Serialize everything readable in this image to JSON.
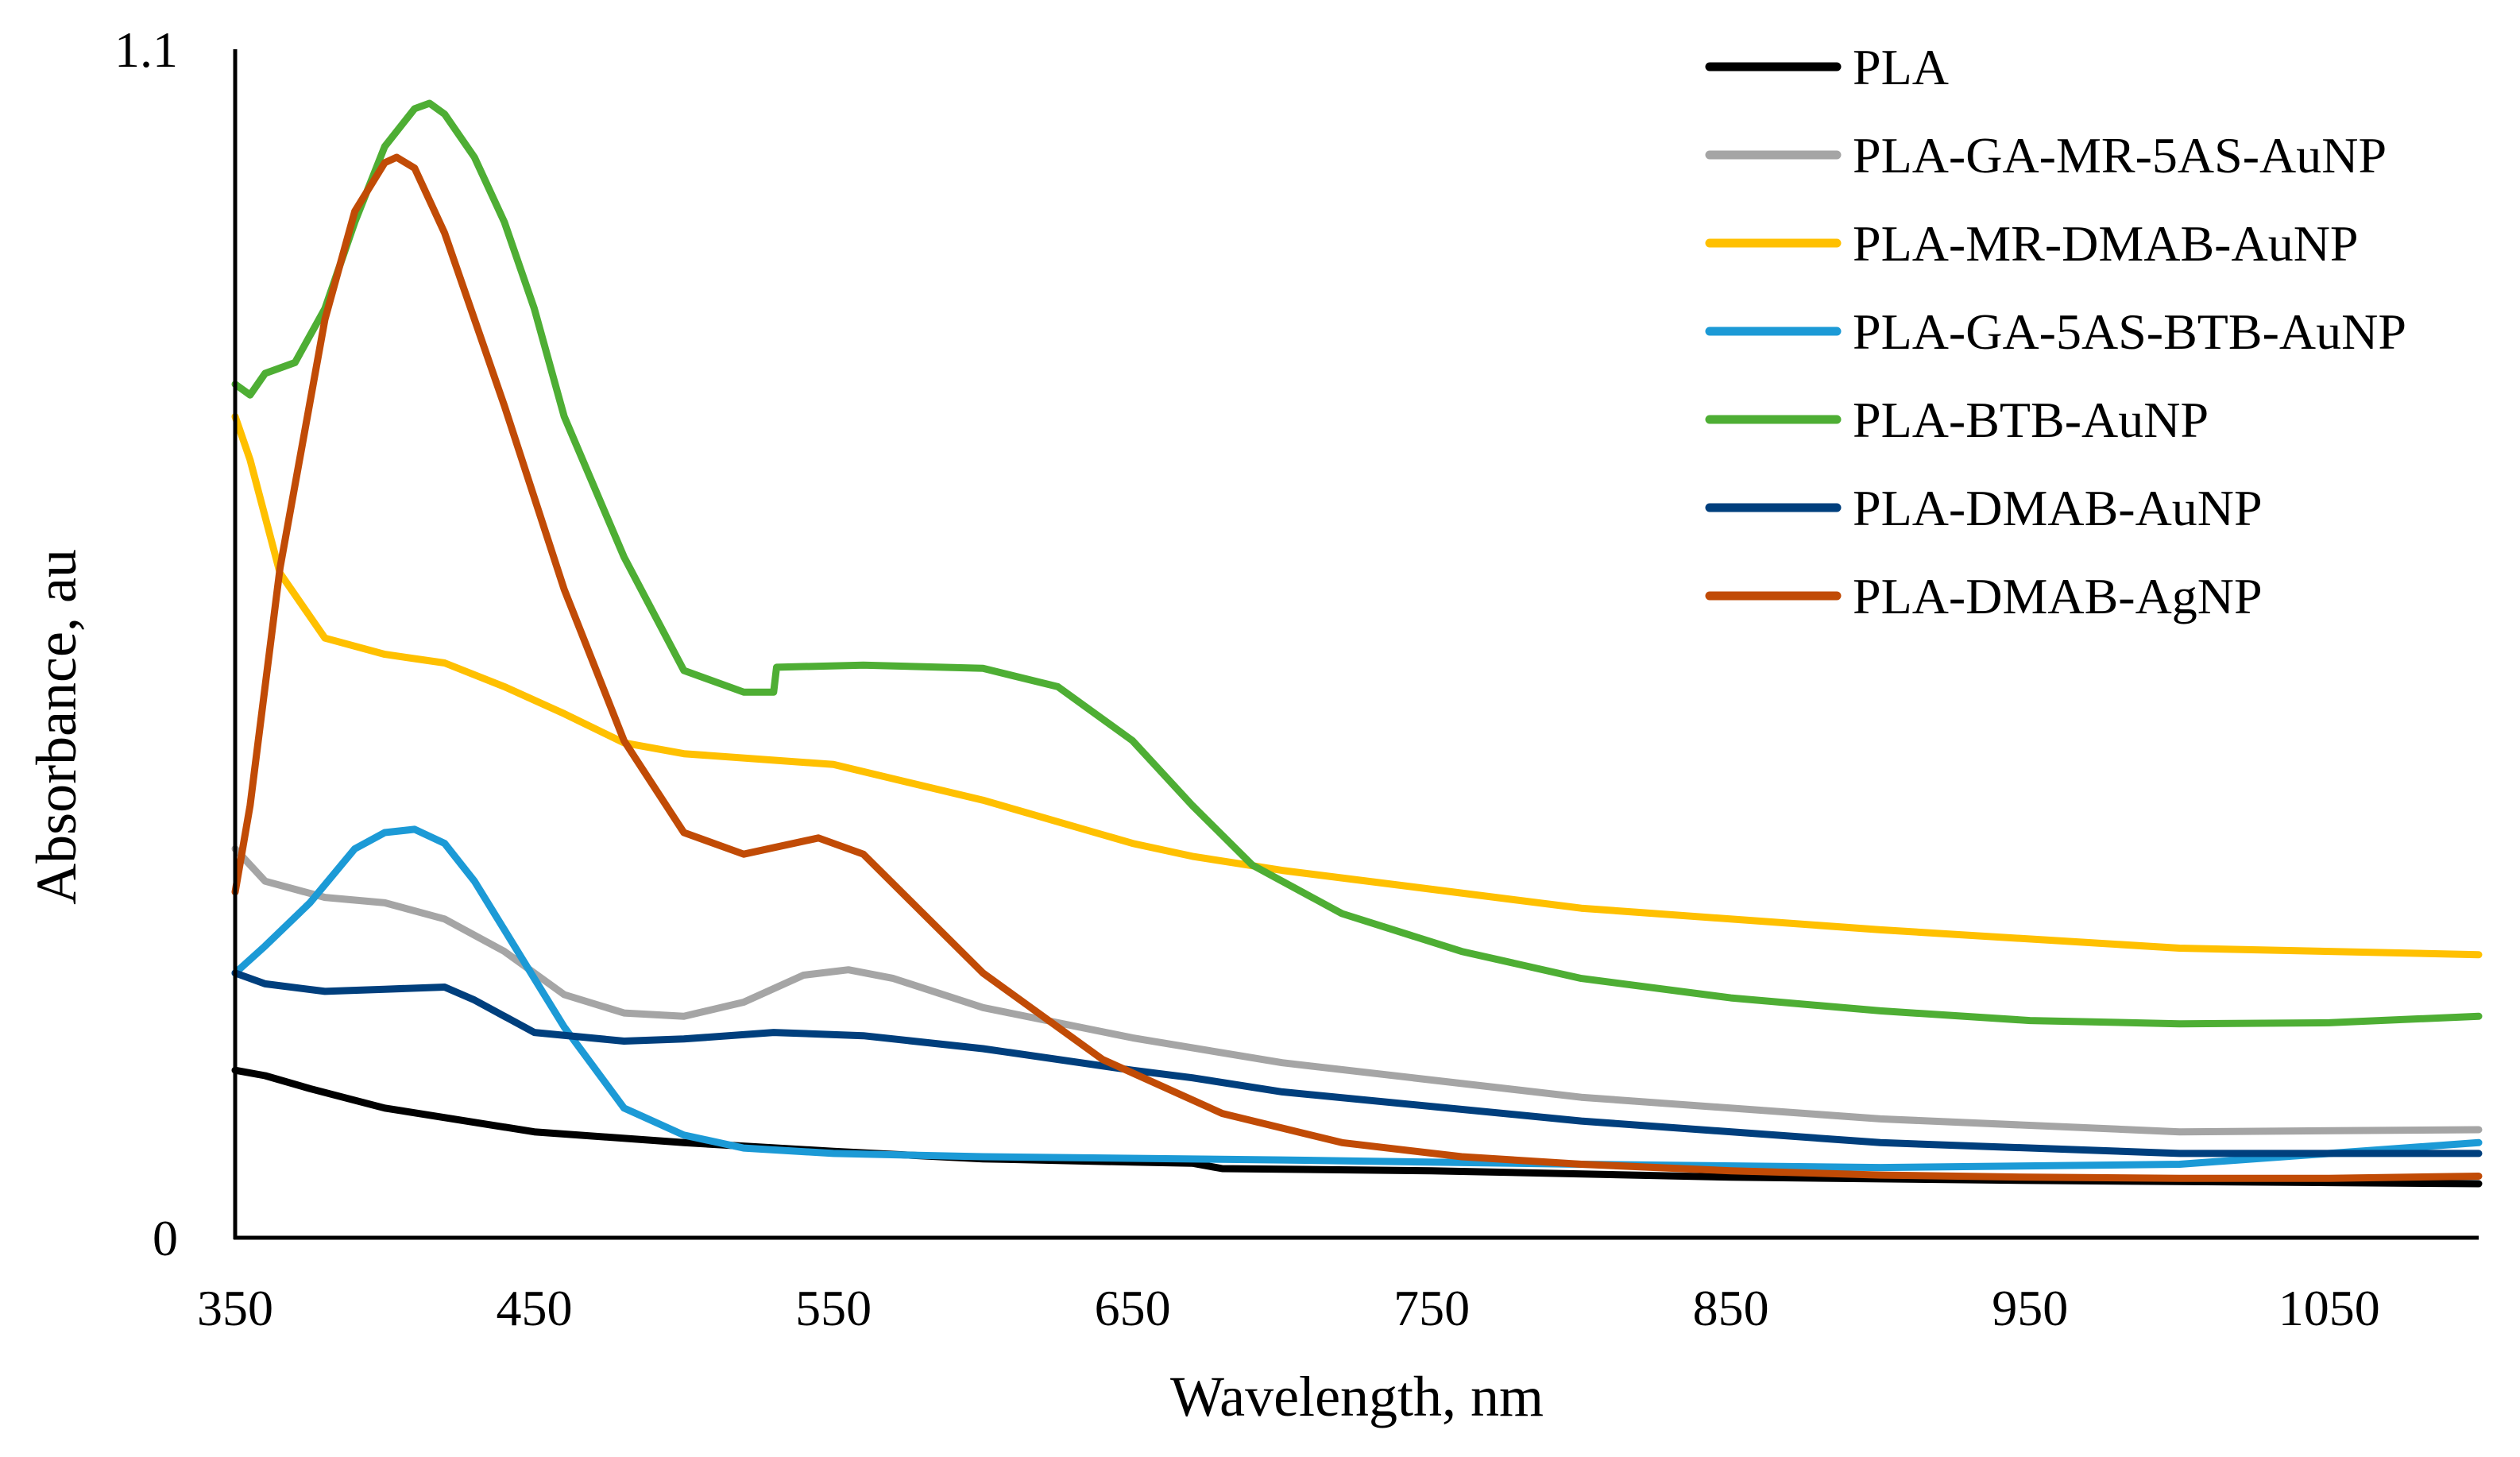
{
  "chart_data": {
    "type": "line",
    "title": "",
    "xlabel": "Wavelength, nm",
    "ylabel": "Absorbance, au",
    "xlim": [
      350,
      1100
    ],
    "ylim": [
      0,
      1.1
    ],
    "x_ticks": [
      350,
      450,
      550,
      650,
      750,
      850,
      950,
      1050
    ],
    "x_tick_labels": [
      "350",
      "450",
      "550",
      "650",
      "750",
      "850",
      "950",
      "1050"
    ],
    "y_ticks": [
      0,
      1.1
    ],
    "y_tick_labels": [
      "0",
      "1.1"
    ],
    "grid": false,
    "legend_position": "top-right",
    "series": [
      {
        "name": "PLA",
        "color": "#000000",
        "x": [
          350,
          360,
          375,
          400,
          450,
          500,
          550,
          600,
          650,
          670,
          680,
          750,
          850,
          950,
          1050,
          1100
        ],
        "y": [
          0.155,
          0.15,
          0.138,
          0.12,
          0.098,
          0.088,
          0.08,
          0.073,
          0.07,
          0.069,
          0.064,
          0.062,
          0.056,
          0.053,
          0.051,
          0.05
        ]
      },
      {
        "name": "PLA-GA-MR-5AS-AuNP",
        "color": "#a5a5a5",
        "x": [
          350,
          360,
          380,
          400,
          420,
          440,
          460,
          480,
          500,
          520,
          540,
          555,
          570,
          600,
          650,
          700,
          800,
          900,
          1000,
          1100
        ],
        "y": [
          0.36,
          0.33,
          0.315,
          0.31,
          0.295,
          0.265,
          0.225,
          0.208,
          0.205,
          0.218,
          0.243,
          0.248,
          0.24,
          0.213,
          0.185,
          0.162,
          0.13,
          0.11,
          0.098,
          0.1
        ]
      },
      {
        "name": "PLA-MR-DMAB-AuNP",
        "color": "#ffc000",
        "x": [
          350,
          355,
          365,
          380,
          400,
          420,
          440,
          460,
          480,
          500,
          550,
          600,
          650,
          670,
          700,
          800,
          900,
          1000,
          1100
        ],
        "y": [
          0.76,
          0.72,
          0.615,
          0.555,
          0.54,
          0.532,
          0.51,
          0.485,
          0.458,
          0.448,
          0.438,
          0.405,
          0.365,
          0.353,
          0.34,
          0.305,
          0.285,
          0.268,
          0.262
        ]
      },
      {
        "name": "PLA-GA-5AS-BTB-AuNP",
        "color": "#1c9ad6",
        "x": [
          350,
          360,
          375,
          390,
          400,
          410,
          420,
          430,
          440,
          450,
          460,
          480,
          500,
          520,
          550,
          600,
          700,
          800,
          900,
          1000,
          1100
        ],
        "y": [
          0.245,
          0.27,
          0.31,
          0.36,
          0.375,
          0.378,
          0.365,
          0.33,
          0.285,
          0.24,
          0.195,
          0.12,
          0.095,
          0.083,
          0.078,
          0.075,
          0.072,
          0.068,
          0.065,
          0.068,
          0.088
        ]
      },
      {
        "name": "PLA-BTB-AuNP",
        "color": "#4eae34",
        "x": [
          350,
          355,
          360,
          370,
          380,
          390,
          400,
          410,
          415,
          420,
          430,
          440,
          450,
          460,
          480,
          500,
          520,
          530,
          531,
          560,
          600,
          625,
          650,
          670,
          690,
          720,
          760,
          800,
          850,
          900,
          950,
          1000,
          1050,
          1100
        ],
        "y": [
          0.79,
          0.78,
          0.8,
          0.81,
          0.86,
          0.94,
          1.01,
          1.045,
          1.05,
          1.04,
          1.0,
          0.94,
          0.86,
          0.76,
          0.63,
          0.525,
          0.505,
          0.505,
          0.528,
          0.53,
          0.527,
          0.51,
          0.46,
          0.4,
          0.345,
          0.3,
          0.265,
          0.24,
          0.222,
          0.21,
          0.201,
          0.198,
          0.199,
          0.205
        ]
      },
      {
        "name": "PLA-DMAB-AuNP",
        "color": "#003f7d",
        "x": [
          350,
          360,
          380,
          400,
          420,
          430,
          450,
          480,
          500,
          530,
          560,
          600,
          650,
          670,
          700,
          800,
          900,
          1000,
          1100
        ],
        "y": [
          0.245,
          0.235,
          0.228,
          0.23,
          0.232,
          0.22,
          0.19,
          0.182,
          0.184,
          0.19,
          0.187,
          0.175,
          0.155,
          0.148,
          0.135,
          0.108,
          0.088,
          0.078,
          0.078
        ]
      },
      {
        "name": "PLA-DMAB-AgNP",
        "color": "#c14b06",
        "x": [
          350,
          355,
          365,
          380,
          390,
          400,
          404,
          410,
          420,
          440,
          460,
          480,
          500,
          520,
          545,
          560,
          580,
          600,
          640,
          680,
          720,
          760,
          800,
          850,
          900,
          950,
          1000,
          1050,
          1100
        ],
        "y": [
          0.32,
          0.4,
          0.62,
          0.85,
          0.95,
          0.995,
          1.0,
          0.99,
          0.93,
          0.77,
          0.6,
          0.46,
          0.375,
          0.355,
          0.37,
          0.355,
          0.3,
          0.245,
          0.165,
          0.115,
          0.088,
          0.075,
          0.068,
          0.062,
          0.058,
          0.056,
          0.055,
          0.055,
          0.057
        ]
      }
    ]
  }
}
